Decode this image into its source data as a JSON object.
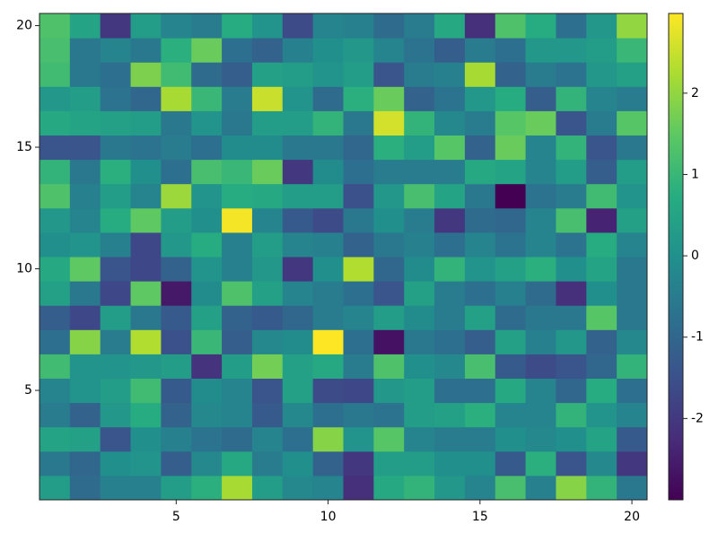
{
  "chart_data": {
    "type": "heatmap",
    "colormap": "viridis",
    "x": [
      1,
      2,
      3,
      4,
      5,
      6,
      7,
      8,
      9,
      10,
      11,
      12,
      13,
      14,
      15,
      16,
      17,
      18,
      19,
      20
    ],
    "y": [
      1,
      2,
      3,
      4,
      5,
      6,
      7,
      8,
      9,
      10,
      11,
      12,
      13,
      14,
      15,
      16,
      17,
      18,
      19,
      20
    ],
    "z": [
      [
        0.3,
        -0.9,
        -0.4,
        -0.4,
        0.3,
        0.8,
        2.2,
        0.3,
        -0.2,
        -0.3,
        -2.2,
        0.6,
        0.9,
        0.2,
        -0.3,
        1.2,
        -0.4,
        1.9,
        0.9,
        -0.6
      ],
      [
        -0.6,
        -1.0,
        0.0,
        0.1,
        -1.2,
        -0.2,
        0.6,
        -0.5,
        0.0,
        -1.1,
        -2.0,
        0.3,
        0.3,
        0.0,
        0.0,
        -1.3,
        0.8,
        -1.4,
        -0.2,
        -2.0
      ],
      [
        0.5,
        0.4,
        -1.4,
        0.0,
        -0.4,
        -0.7,
        -0.9,
        -0.3,
        -0.8,
        1.9,
        0.1,
        1.4,
        -0.3,
        -0.5,
        -0.5,
        0.0,
        -0.2,
        0.0,
        0.5,
        -1.3
      ],
      [
        -0.5,
        -1.1,
        0.2,
        0.7,
        -1.1,
        -0.2,
        -0.3,
        -1.3,
        -0.2,
        -0.8,
        -0.6,
        -0.7,
        0.3,
        0.4,
        0.8,
        -0.3,
        -0.3,
        0.9,
        0.1,
        -0.3
      ],
      [
        -0.3,
        0.1,
        0.3,
        1.1,
        -1.3,
        -0.1,
        -0.3,
        -1.4,
        0.4,
        -1.6,
        -1.7,
        0.2,
        0.3,
        -0.8,
        -0.8,
        0.6,
        -0.3,
        -1.0,
        0.7,
        -0.8
      ],
      [
        1.1,
        0.1,
        0.1,
        0.2,
        0.3,
        -2.1,
        0.3,
        1.7,
        0.4,
        0.6,
        -0.5,
        1.3,
        0.0,
        -0.2,
        1.2,
        -1.3,
        -1.6,
        -1.4,
        -1.0,
        0.9
      ],
      [
        -0.8,
        1.9,
        -0.5,
        2.3,
        -1.5,
        1.0,
        -1.2,
        -0.2,
        -0.1,
        3.0,
        -0.8,
        -2.7,
        -0.6,
        -0.8,
        -1.2,
        0.4,
        -0.4,
        0.2,
        -1.1,
        -0.2
      ],
      [
        -1.2,
        -1.7,
        0.3,
        -0.6,
        -1.3,
        0.4,
        -1.1,
        -1.3,
        -1.0,
        -0.5,
        -0.3,
        0.3,
        -0.1,
        -0.5,
        0.4,
        -0.9,
        -0.6,
        -0.6,
        1.4,
        -0.6
      ],
      [
        0.4,
        -0.6,
        -1.7,
        1.5,
        -2.6,
        -0.1,
        1.3,
        0.4,
        -0.3,
        -0.5,
        -0.8,
        -1.4,
        0.4,
        -0.5,
        -0.8,
        -0.4,
        -0.9,
        -2.2,
        0.0,
        -0.6
      ],
      [
        0.6,
        1.5,
        -1.4,
        -1.7,
        -1.1,
        0.1,
        -0.4,
        0.2,
        -2.0,
        0.0,
        2.3,
        -1.0,
        -0.1,
        0.9,
        0.1,
        0.4,
        0.8,
        0.0,
        0.5,
        -0.6
      ],
      [
        0.0,
        0.1,
        -0.4,
        -1.7,
        0.2,
        0.7,
        -0.4,
        0.3,
        -0.3,
        -0.4,
        -1.1,
        -0.6,
        -0.4,
        -0.8,
        -0.3,
        -0.7,
        -0.3,
        -0.7,
        0.7,
        -0.3
      ],
      [
        0.2,
        -0.3,
        0.7,
        1.5,
        0.3,
        0.0,
        2.9,
        -0.3,
        -1.3,
        -1.6,
        -0.6,
        0.0,
        -0.5,
        -2.0,
        -0.9,
        -1.0,
        -0.3,
        1.2,
        -2.4,
        0.4
      ],
      [
        1.3,
        -0.4,
        0.3,
        -0.3,
        2.1,
        0.1,
        0.7,
        0.6,
        0.3,
        0.3,
        -1.5,
        0.2,
        1.2,
        0.5,
        -0.6,
        -3.0,
        -0.7,
        -0.5,
        1.1,
        0.1
      ],
      [
        0.9,
        -0.6,
        0.8,
        0.0,
        -0.8,
        1.2,
        1.0,
        1.6,
        -2.0,
        -0.1,
        -0.8,
        -0.5,
        -0.5,
        -0.5,
        0.6,
        0.5,
        -0.3,
        0.3,
        -1.2,
        0.3
      ],
      [
        -1.4,
        -1.4,
        -0.6,
        -0.7,
        -0.5,
        -0.8,
        -0.1,
        -0.1,
        -0.6,
        -0.6,
        -1.0,
        0.8,
        0.3,
        1.4,
        -1.1,
        1.6,
        -0.3,
        0.9,
        -1.4,
        -0.6
      ],
      [
        0.6,
        0.5,
        0.4,
        0.3,
        -0.6,
        0.1,
        -0.6,
        0.3,
        0.3,
        0.9,
        -0.6,
        2.6,
        0.9,
        -0.2,
        -0.5,
        1.4,
        1.6,
        -1.4,
        -0.5,
        1.4
      ],
      [
        0.2,
        0.3,
        -0.7,
        -1.0,
        2.2,
        1.0,
        -0.5,
        2.5,
        0.1,
        -0.9,
        0.8,
        1.6,
        -1.1,
        -0.7,
        0.2,
        0.7,
        -1.2,
        0.9,
        -0.3,
        -0.5
      ],
      [
        1.1,
        -0.6,
        -0.8,
        1.8,
        1.1,
        -0.9,
        -1.2,
        0.4,
        0.3,
        0.1,
        0.3,
        -1.4,
        -0.5,
        -0.4,
        2.2,
        -1.1,
        -0.5,
        -0.7,
        0.2,
        0.4
      ],
      [
        1.2,
        -0.6,
        -0.3,
        -0.6,
        0.8,
        1.6,
        -0.8,
        -1.1,
        -0.4,
        0.0,
        0.2,
        -0.3,
        -0.7,
        -1.2,
        -0.5,
        -0.8,
        0.2,
        0.2,
        0.3,
        1.0
      ],
      [
        1.3,
        0.5,
        -2.0,
        0.3,
        -0.3,
        -0.5,
        0.7,
        0.1,
        -1.6,
        -0.3,
        -0.4,
        -0.9,
        -0.5,
        0.6,
        -2.2,
        1.3,
        0.7,
        -0.8,
        0.2,
        2.0
      ]
    ],
    "xlim": [
      0.5,
      20.5
    ],
    "ylim": [
      0.5,
      20.5
    ],
    "xticks": [
      5,
      10,
      15,
      20
    ],
    "yticks": [
      5,
      10,
      15,
      20
    ],
    "clim": [
      -3.0,
      2.98
    ],
    "cticks": [
      -2,
      -1,
      0,
      1,
      2
    ]
  }
}
